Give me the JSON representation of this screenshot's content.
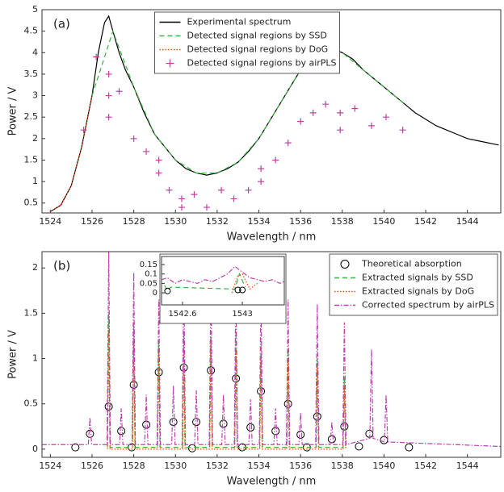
{
  "chart_data": [
    {
      "type": "line",
      "title": "(a)",
      "x_label": "Wavelength / nm",
      "y_label": "Power / V",
      "xlim": [
        1523.6,
        1545.6
      ],
      "ylim": [
        0.27,
        5
      ],
      "xticks": [
        1524,
        1526,
        1528,
        1530,
        1532,
        1534,
        1536,
        1538,
        1540,
        1542,
        1544
      ],
      "yticks": [
        0.5,
        1,
        1.5,
        2,
        2.5,
        3,
        3.5,
        4,
        4.5,
        5
      ],
      "grid": false,
      "legend": "upper center",
      "series": [
        {
          "name": "Experimental spectrum",
          "color": "#000000",
          "style": "solid",
          "marker": "none",
          "x": [
            1524,
            1524.5,
            1525,
            1525.5,
            1526,
            1526.3,
            1526.6,
            1526.8,
            1527,
            1527.3,
            1527.6,
            1528,
            1528.5,
            1529,
            1529.5,
            1530,
            1530.5,
            1531,
            1531.5,
            1532,
            1532.5,
            1533,
            1533.5,
            1534,
            1534.5,
            1535,
            1535.5,
            1536,
            1536.5,
            1537,
            1537.5,
            1538,
            1538.5,
            1539,
            1539.5,
            1540,
            1540.5,
            1541,
            1541.5,
            1542,
            1542.5,
            1543,
            1543.5,
            1544,
            1544.5,
            1545.5
          ],
          "values": [
            0.3,
            0.45,
            0.9,
            1.8,
            3.0,
            4.0,
            4.7,
            4.85,
            4.5,
            4.0,
            3.6,
            3.2,
            2.6,
            2.1,
            1.8,
            1.5,
            1.3,
            1.2,
            1.15,
            1.2,
            1.3,
            1.45,
            1.7,
            2.0,
            2.4,
            2.8,
            3.2,
            3.6,
            3.9,
            4.05,
            4.1,
            4.0,
            3.85,
            3.6,
            3.4,
            3.2,
            3.0,
            2.8,
            2.6,
            2.45,
            2.3,
            2.2,
            2.1,
            2.0,
            1.95,
            1.85
          ]
        },
        {
          "name": "Detected signal regions by SSD",
          "color": "#3cb043",
          "style": "dashed",
          "marker": "none",
          "x": [
            1526,
            1527,
            1528,
            1529,
            1530,
            1531,
            1532,
            1533,
            1534,
            1535,
            1536,
            1537,
            1538,
            1539,
            1540,
            1541
          ],
          "values": [
            3.0,
            4.5,
            3.2,
            2.1,
            1.5,
            1.2,
            1.2,
            1.45,
            2.0,
            2.8,
            3.6,
            4.05,
            4.0,
            3.6,
            3.2,
            2.8
          ]
        },
        {
          "name": "Detected signal regions by DoG",
          "color": "#ff4500",
          "style": "dotted",
          "marker": "none",
          "x": [
            1524,
            1524.5,
            1525,
            1525.5,
            1526
          ],
          "values": [
            0.3,
            0.45,
            0.9,
            1.8,
            3.0
          ]
        },
        {
          "name": "Detected signal regions by airPLS",
          "color": "#c040a0",
          "style": "none",
          "marker": "+",
          "x": [
            1525.6,
            1526.2,
            1526.8,
            1526.8,
            1526.8,
            1527.3,
            1528,
            1528.6,
            1529.2,
            1529.2,
            1529.7,
            1530.3,
            1530.3,
            1530.9,
            1531.5,
            1532.2,
            1532.8,
            1533.5,
            1534.1,
            1534.1,
            1534.8,
            1535.4,
            1536,
            1536.6,
            1537.2,
            1537.9,
            1537.9,
            1538.6,
            1539.4,
            1540.1,
            1540.9
          ],
          "values": [
            2.2,
            3.9,
            3.5,
            3.0,
            2.5,
            3.1,
            2.0,
            1.7,
            1.5,
            1.2,
            0.8,
            0.6,
            0.4,
            0.7,
            0.4,
            0.8,
            0.6,
            0.8,
            1.0,
            1.3,
            1.5,
            1.9,
            2.4,
            2.6,
            2.8,
            2.2,
            2.6,
            2.7,
            2.3,
            2.5,
            2.2
          ]
        }
      ]
    },
    {
      "type": "line",
      "title": "(b)",
      "x_label": "Wavelength / nm",
      "y_label": "Power / V",
      "xlim": [
        1523.6,
        1545.6
      ],
      "ylim": [
        -0.09,
        2.18
      ],
      "xticks": [
        1524,
        1526,
        1528,
        1530,
        1532,
        1534,
        1536,
        1538,
        1540,
        1542,
        1544
      ],
      "yticks": [
        0,
        0.5,
        1,
        1.5,
        2
      ],
      "grid": false,
      "legend": "upper right",
      "series": [
        {
          "name": "Theoretical absorption",
          "color": "#000000",
          "style": "none",
          "marker": "o",
          "x": [
            1525.2,
            1525.9,
            1526.8,
            1527.4,
            1527.9,
            1528,
            1528.6,
            1529.2,
            1529.9,
            1530.4,
            1530.8,
            1531,
            1531.7,
            1532.3,
            1532.9,
            1533.2,
            1533.6,
            1534.1,
            1534.8,
            1535.4,
            1536,
            1536.3,
            1536.8,
            1537.5,
            1538.1,
            1538.8,
            1539.3,
            1540,
            1541.2
          ],
          "values": [
            0.02,
            0.17,
            0.47,
            0.2,
            0.02,
            0.71,
            0.27,
            0.85,
            0.3,
            0.9,
            0.01,
            0.3,
            0.87,
            0.28,
            0.78,
            0.02,
            0.24,
            0.64,
            0.2,
            0.5,
            0.16,
            0.02,
            0.36,
            0.11,
            0.25,
            0.03,
            0.17,
            0.1,
            0.02
          ]
        },
        {
          "name": "Extracted signals by SSD",
          "color": "#3cb043",
          "style": "dashed",
          "marker": "none",
          "x": [
            1526.74,
            1526.8,
            1526.86,
            1527.94,
            1528,
            1528.06,
            1529.14,
            1529.2,
            1529.26,
            1530.34,
            1530.4,
            1530.46,
            1531.64,
            1531.7,
            1531.76,
            1532.84,
            1532.9,
            1532.96,
            1534.04,
            1534.1,
            1534.16,
            1535.34,
            1535.4,
            1535.46,
            1536.74,
            1536.8,
            1536.86,
            1538.04,
            1538.1,
            1538.16
          ],
          "values": [
            0.02,
            1.5,
            0.02,
            0.02,
            1.4,
            0.02,
            0.02,
            1.2,
            0.02,
            0.02,
            1.3,
            0.02,
            0.02,
            1.3,
            0.02,
            0.02,
            1.3,
            0.02,
            0.02,
            1.2,
            0.02,
            0.02,
            1.1,
            0.02,
            0.02,
            1.0,
            0.02,
            0.02,
            0.8,
            0.02
          ]
        },
        {
          "name": "Extracted signals by DoG",
          "color": "#ff4500",
          "style": "dotted",
          "marker": "none",
          "x": [
            1526.74,
            1526.8,
            1526.86,
            1527.94,
            1528,
            1528.06,
            1529.14,
            1529.2,
            1529.26,
            1530.34,
            1530.4,
            1530.46,
            1531.64,
            1531.7,
            1531.76,
            1532.84,
            1532.9,
            1532.96,
            1534.04,
            1534.1,
            1534.16,
            1535.34,
            1535.4,
            1535.46,
            1536.74,
            1536.8,
            1536.86,
            1538.04,
            1538.1,
            1538.16
          ],
          "values": [
            0,
            1.3,
            0,
            0,
            1.2,
            0,
            0,
            1.1,
            0,
            0,
            1.1,
            0,
            0,
            1.2,
            0,
            0,
            1.1,
            0,
            0,
            1.0,
            0,
            0,
            1.0,
            0,
            0,
            0.9,
            0,
            0,
            0.7,
            0
          ]
        },
        {
          "name": "Corrected spectrum by airPLS",
          "color": "#c040b0",
          "style": "dashdot",
          "marker": "none",
          "x": [
            1523.6,
            1525.82,
            1525.9,
            1525.98,
            1526.72,
            1526.8,
            1526.88,
            1527.32,
            1527.4,
            1527.48,
            1527.92,
            1528,
            1528.08,
            1528.52,
            1528.6,
            1528.68,
            1529.12,
            1529.2,
            1529.28,
            1529.82,
            1529.9,
            1529.98,
            1530.32,
            1530.4,
            1530.48,
            1530.92,
            1531,
            1531.08,
            1531.62,
            1531.7,
            1531.78,
            1532.22,
            1532.3,
            1532.38,
            1532.82,
            1532.9,
            1532.98,
            1533.52,
            1533.6,
            1533.68,
            1534.02,
            1534.1,
            1534.18,
            1534.72,
            1534.8,
            1534.88,
            1535.32,
            1535.4,
            1535.48,
            1535.92,
            1536,
            1536.08,
            1536.72,
            1536.8,
            1536.88,
            1537.42,
            1537.5,
            1537.58,
            1538.02,
            1538.1,
            1538.18,
            1539.32,
            1539.4,
            1539.48,
            1540.02,
            1540.1,
            1540.18,
            1545.6
          ],
          "values": [
            0.05,
            0.05,
            0.35,
            0.05,
            0.05,
            2.2,
            0.05,
            0.05,
            0.45,
            0.05,
            0.05,
            1.95,
            0.05,
            0.05,
            0.6,
            0.05,
            0.05,
            1.65,
            0.05,
            0.05,
            0.7,
            0.05,
            0.05,
            1.95,
            0.05,
            0.05,
            0.65,
            0.05,
            0.05,
            1.9,
            0.05,
            0.05,
            0.6,
            0.05,
            0.05,
            1.85,
            0.05,
            0.05,
            0.55,
            0.05,
            0.05,
            1.75,
            0.05,
            0.05,
            0.45,
            0.05,
            0.05,
            1.65,
            0.05,
            0.05,
            0.4,
            0.05,
            0.05,
            1.6,
            0.05,
            0.05,
            0.3,
            0.05,
            0.05,
            1.4,
            0.05,
            0.12,
            1.1,
            0.12,
            0.08,
            0.6,
            0.08,
            0.03
          ]
        }
      ]
    },
    {
      "type": "line",
      "xlim": [
        1542.46,
        1543.28
      ],
      "ylim": [
        -0.064,
        0.193
      ],
      "xticks": [
        1542.6,
        1543
      ],
      "yticks": [
        0,
        0.05,
        0.1,
        0.15
      ],
      "grid": false,
      "series": [
        {
          "color": "#c040b0",
          "style": "dashdot",
          "marker": "none",
          "x": [
            1542.46,
            1542.5,
            1542.55,
            1542.6,
            1542.65,
            1542.7,
            1542.75,
            1542.8,
            1542.85,
            1542.9,
            1542.95,
            1543,
            1543.05,
            1543.1,
            1543.15,
            1543.2,
            1543.25,
            1543.28
          ],
          "values": [
            0.07,
            0.08,
            0.05,
            0.07,
            0.06,
            0.05,
            0.07,
            0.06,
            0.08,
            0.1,
            0.14,
            0.11,
            0.08,
            0.07,
            0.06,
            0.07,
            0.05,
            0.06
          ]
        },
        {
          "color": "#3cb043",
          "style": "dashed",
          "marker": "none",
          "x": [
            1542.48,
            1542.5,
            1542.52,
            1542.95,
            1542.98,
            1543.02
          ],
          "values": [
            0.04,
            0.01,
            0.03,
            0.02,
            0.1,
            0.03
          ]
        },
        {
          "color": "#ff4500",
          "style": "dotted",
          "marker": "none",
          "x": [
            1542.93,
            1542.97,
            1543,
            1543.05,
            1543.1
          ],
          "values": [
            0.0,
            0.09,
            0.1,
            0.02,
            0.05
          ]
        },
        {
          "color": "#000000",
          "style": "none",
          "marker": "o",
          "x": [
            1542.5,
            1542.97,
            1543
          ],
          "values": [
            0.01,
            0.015,
            0.015
          ]
        }
      ]
    }
  ]
}
